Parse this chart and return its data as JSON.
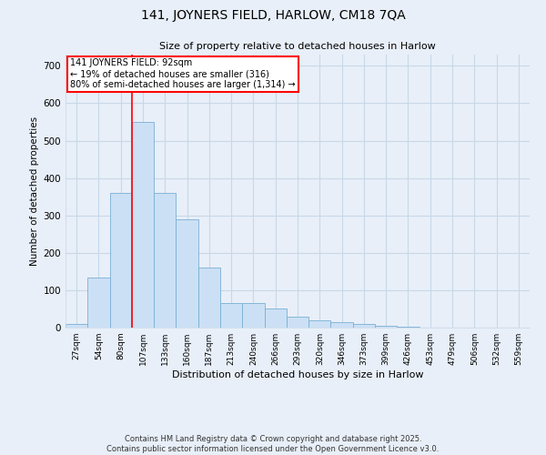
{
  "title1": "141, JOYNERS FIELD, HARLOW, CM18 7QA",
  "title2": "Size of property relative to detached houses in Harlow",
  "xlabel": "Distribution of detached houses by size in Harlow",
  "ylabel": "Number of detached properties",
  "footnote1": "Contains HM Land Registry data © Crown copyright and database right 2025.",
  "footnote2": "Contains public sector information licensed under the Open Government Licence v3.0.",
  "annotation_line1": "141 JOYNERS FIELD: 92sqm",
  "annotation_line2": "← 19% of detached houses are smaller (316)",
  "annotation_line3": "80% of semi-detached houses are larger (1,314) →",
  "bar_labels": [
    "27sqm",
    "54sqm",
    "80sqm",
    "107sqm",
    "133sqm",
    "160sqm",
    "187sqm",
    "213sqm",
    "240sqm",
    "266sqm",
    "293sqm",
    "320sqm",
    "346sqm",
    "373sqm",
    "399sqm",
    "426sqm",
    "453sqm",
    "479sqm",
    "506sqm",
    "532sqm",
    "559sqm"
  ],
  "bar_values": [
    10,
    135,
    360,
    550,
    360,
    290,
    160,
    65,
    65,
    50,
    30,
    20,
    15,
    10,
    5,
    3,
    1,
    1,
    0,
    0,
    0
  ],
  "bar_color": "#cce0f5",
  "bar_edge_color": "#7aafd4",
  "grid_color": "#c8d8e8",
  "background_color": "#e8eff8",
  "red_line_x": 2.5,
  "ylim": [
    0,
    730
  ],
  "yticks": [
    0,
    100,
    200,
    300,
    400,
    500,
    600,
    700
  ]
}
